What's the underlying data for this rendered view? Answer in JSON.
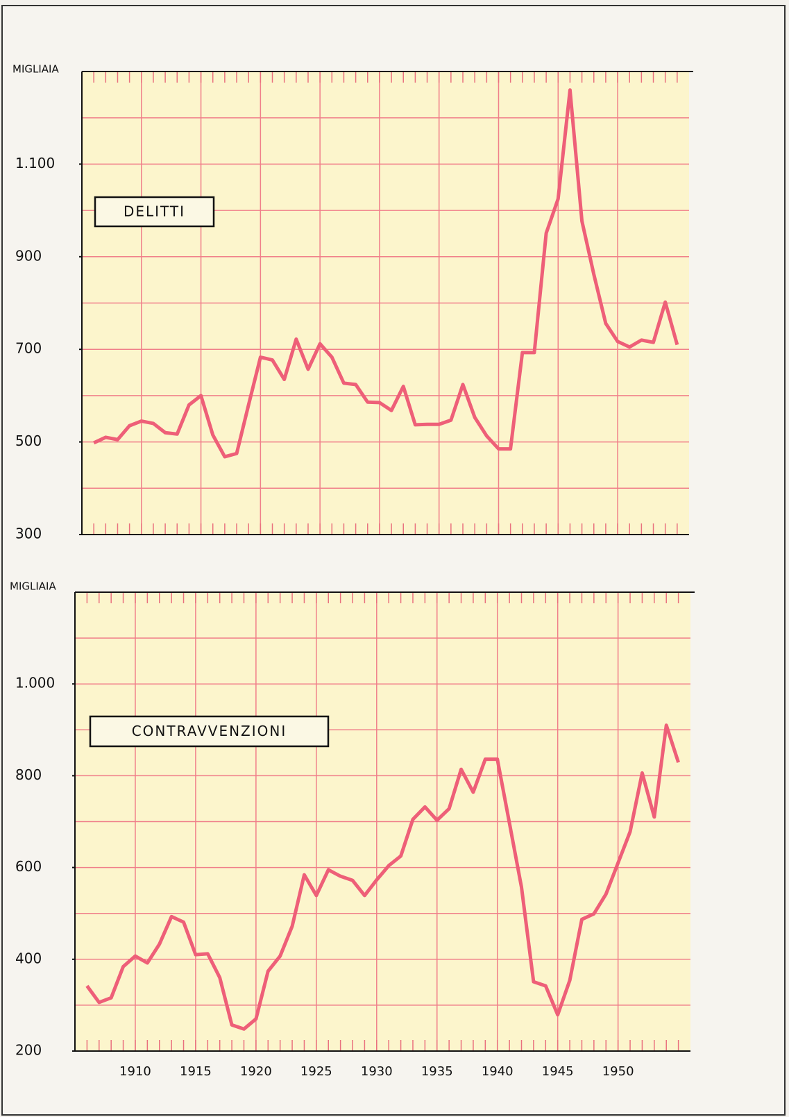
{
  "chart_data": [
    {
      "type": "line",
      "y_label": "MIGLIAIA",
      "annotation": "DELITTI",
      "color": "#ee5f78",
      "x": [
        1906,
        1907,
        1908,
        1909,
        1910,
        1911,
        1912,
        1913,
        1914,
        1915,
        1916,
        1917,
        1918,
        1919,
        1920,
        1921,
        1922,
        1923,
        1924,
        1925,
        1926,
        1927,
        1928,
        1929,
        1930,
        1931,
        1932,
        1933,
        1934,
        1935,
        1936,
        1937,
        1938,
        1939,
        1940,
        1941,
        1942,
        1943,
        1944,
        1945,
        1946,
        1947,
        1948,
        1949,
        1950,
        1951,
        1952,
        1953,
        1954,
        1955
      ],
      "values": [
        498,
        510,
        505,
        535,
        545,
        540,
        520,
        517,
        580,
        600,
        515,
        468,
        475,
        580,
        683,
        677,
        635,
        722,
        657,
        712,
        683,
        627,
        624,
        586,
        585,
        568,
        620,
        537,
        538,
        538,
        547,
        624,
        553,
        513,
        485,
        485,
        693,
        693,
        951,
        1025,
        1260,
        977,
        862,
        756,
        717,
        705,
        720,
        715,
        802,
        710
      ],
      "xlim": [
        1905,
        1956
      ],
      "ylim": [
        300,
        1300
      ],
      "yticks": [
        300,
        500,
        700,
        900,
        {
          "value": 1100,
          "label": "1.100"
        }
      ],
      "ygrid": [
        300,
        400,
        500,
        600,
        700,
        800,
        900,
        1000,
        1100,
        1200,
        1300
      ],
      "xgrid": [
        1910,
        1915,
        1920,
        1925,
        1930,
        1935,
        1940,
        1945,
        1950
      ],
      "grid": true
    },
    {
      "type": "line",
      "y_label": "MIGLIAIA",
      "annotation": "CONTRAVVENZIONI",
      "color": "#ee5f78",
      "x": [
        1906,
        1907,
        1908,
        1909,
        1910,
        1911,
        1912,
        1913,
        1914,
        1915,
        1916,
        1917,
        1918,
        1919,
        1920,
        1921,
        1922,
        1923,
        1924,
        1925,
        1926,
        1927,
        1928,
        1929,
        1930,
        1931,
        1932,
        1933,
        1934,
        1935,
        1936,
        1937,
        1938,
        1939,
        1940,
        1941,
        1942,
        1943,
        1944,
        1945,
        1946,
        1947,
        1948,
        1949,
        1950,
        1951,
        1952,
        1953,
        1954,
        1955
      ],
      "values": [
        342,
        306,
        316,
        384,
        407,
        392,
        433,
        493,
        481,
        410,
        412,
        360,
        257,
        248,
        270,
        374,
        407,
        472,
        584,
        539,
        595,
        581,
        572,
        539,
        573,
        604,
        625,
        705,
        732,
        703,
        728,
        814,
        764,
        836,
        836,
        697,
        557,
        351,
        342,
        279,
        354,
        487,
        499,
        542,
        610,
        678,
        806,
        710,
        910,
        829
      ],
      "xlim": [
        1905,
        1956
      ],
      "ylim": [
        200,
        1200
      ],
      "yticks": [
        200,
        400,
        600,
        800,
        {
          "value": 1000,
          "label": "1.000"
        }
      ],
      "ygrid": [
        200,
        300,
        400,
        500,
        600,
        700,
        800,
        900,
        1000,
        1100,
        1200
      ],
      "xticks": [
        1910,
        1915,
        1920,
        1925,
        1930,
        1935,
        1940,
        1945,
        1950
      ],
      "grid": true
    }
  ]
}
